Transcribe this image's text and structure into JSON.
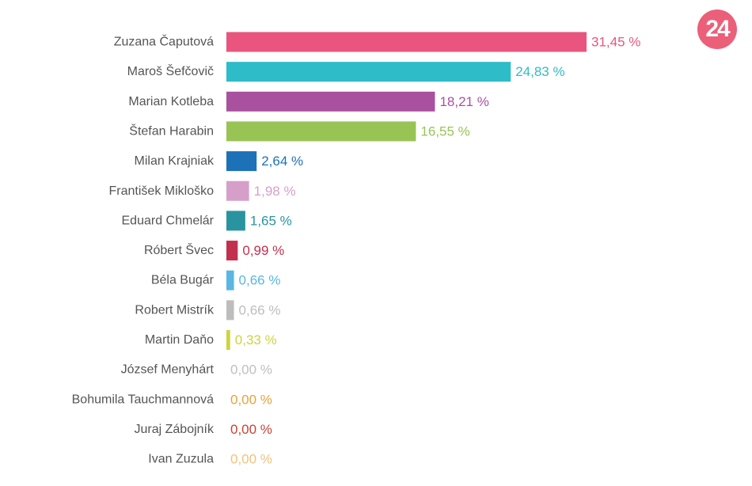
{
  "logo": {
    "text": "24",
    "color": "#ec5f79"
  },
  "chart_data": {
    "type": "bar",
    "orientation": "horizontal",
    "categories": [
      "Zuzana Čaputová",
      "Maroš Šefčovič",
      "Marian Kotleba",
      "Štefan Harabin",
      "Milan Krajniak",
      "František Mikloško",
      "Eduard Chmelár",
      "Róbert Švec",
      "Béla Bugár",
      "Robert Mistrík",
      "Martin Daňo",
      "József Menyhárt",
      "Bohumila Tauchmannová",
      "Juraj Zábojník",
      "Ivan Zuzula"
    ],
    "values": [
      31.45,
      24.83,
      18.21,
      16.55,
      2.64,
      1.98,
      1.65,
      0.99,
      0.66,
      0.66,
      0.33,
      0.0,
      0.0,
      0.0,
      0.0
    ],
    "value_labels": [
      "31,45 %",
      "24,83 %",
      "18,21 %",
      "16,55 %",
      "2,64 %",
      "1,98 %",
      "1,65 %",
      "0,99 %",
      "0,66 %",
      "0,66 %",
      "0,33 %",
      "0,00 %",
      "0,00 %",
      "0,00 %",
      "0,00 %"
    ],
    "colors": [
      "#e9557f",
      "#2fbcc9",
      "#a9509f",
      "#98c456",
      "#1d71b8",
      "#d69fca",
      "#2994a0",
      "#c2304f",
      "#5ab6e4",
      "#bdbdbd",
      "#cdd43e",
      "#bfbfbf",
      "#e8a13a",
      "#c94232",
      "#f0c27a"
    ],
    "xlim": [
      0,
      31.45
    ],
    "grid": false,
    "legend": "none",
    "title": "",
    "xlabel": "",
    "ylabel": ""
  }
}
